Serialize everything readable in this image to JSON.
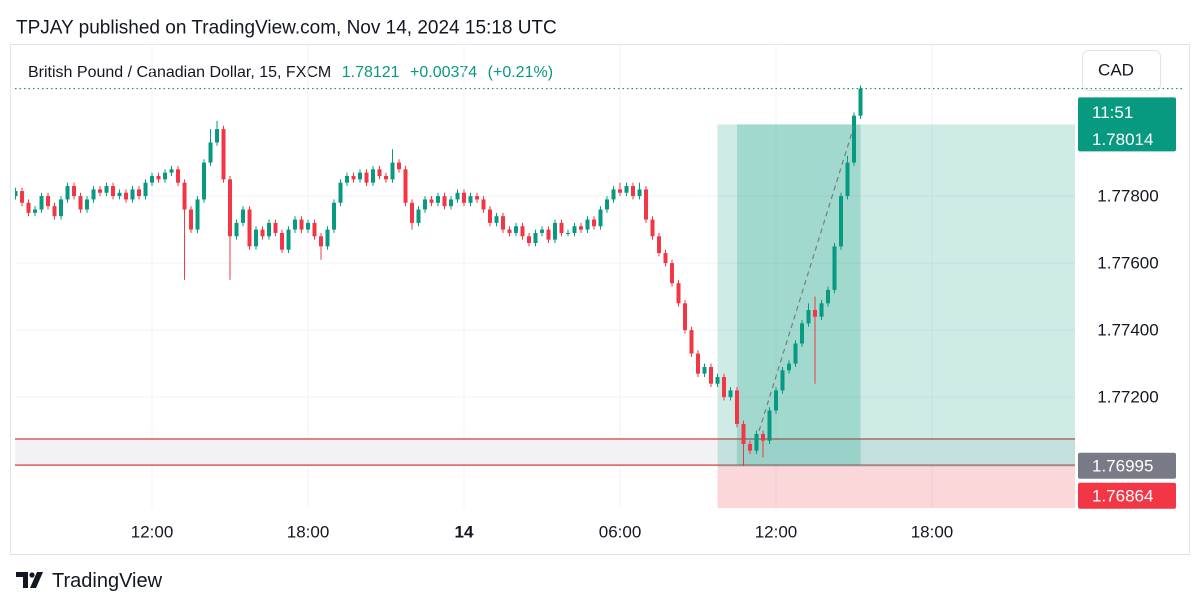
{
  "header": "TPJAY published on TradingView.com, Nov 14, 2024 15:18 UTC",
  "footer": "TradingView",
  "currency_button": "CAD",
  "chart_data": {
    "type": "candlestick",
    "title": "British Pound / Canadian Dollar, 15, FXCM",
    "last_price": 1.78121,
    "change": "+0.00374",
    "change_pct": "(+0.21%)",
    "countdown": "11:51",
    "up_color": "#089981",
    "down_color": "#f23645",
    "grid": true,
    "xlim": [
      6.73,
      47.5
    ],
    "xticks": [
      {
        "value": 12,
        "label": "12:00"
      },
      {
        "value": 18,
        "label": "18:00"
      },
      {
        "value": 24,
        "label": "14"
      },
      {
        "value": 30,
        "label": "06:00"
      },
      {
        "value": 36,
        "label": "12:00"
      },
      {
        "value": 42,
        "label": "18:00"
      }
    ],
    "ylim": [
      1.76869,
      1.78251
    ],
    "yticks": [
      {
        "value": 1.772,
        "label": "1.77200"
      },
      {
        "value": 1.774,
        "label": "1.77400"
      },
      {
        "value": 1.776,
        "label": "1.77600"
      },
      {
        "value": 1.778,
        "label": "1.77800"
      }
    ],
    "zone": [
      1.76997,
      1.77075
    ],
    "position": {
      "entry": 1.76995,
      "target": 1.78014,
      "stop": 1.76864,
      "start": 33.75,
      "end": 47.5,
      "filled_start": 34.5,
      "filled_end": 39.25
    },
    "x": [
      6.75,
      7,
      7.25,
      7.5,
      7.75,
      8,
      8.25,
      8.5,
      8.75,
      9,
      9.25,
      9.5,
      9.75,
      10,
      10.25,
      10.5,
      10.75,
      11,
      11.25,
      11.5,
      11.75,
      12,
      12.25,
      12.5,
      12.75,
      13,
      13.25,
      13.5,
      13.75,
      14,
      14.25,
      14.5,
      14.75,
      15,
      15.25,
      15.5,
      15.75,
      16,
      16.25,
      16.5,
      16.75,
      17,
      17.25,
      17.5,
      17.75,
      18,
      18.25,
      18.5,
      18.75,
      19,
      19.25,
      19.5,
      19.75,
      20,
      20.25,
      20.5,
      20.75,
      21,
      21.25,
      21.5,
      21.75,
      22,
      22.25,
      22.5,
      22.75,
      23,
      23.25,
      23.5,
      23.75,
      24,
      24.25,
      24.5,
      24.75,
      25,
      25.25,
      25.5,
      25.75,
      26,
      26.25,
      26.5,
      26.75,
      27,
      27.25,
      27.5,
      27.75,
      28,
      28.25,
      28.5,
      28.75,
      29,
      29.25,
      29.5,
      29.75,
      30,
      30.25,
      30.5,
      30.75,
      31,
      31.25,
      31.5,
      31.75,
      32,
      32.25,
      32.5,
      32.75,
      33,
      33.25,
      33.5,
      33.75,
      34,
      34.25,
      34.5,
      34.75,
      35,
      35.25,
      35.5,
      35.75,
      36,
      36.25,
      36.5,
      36.75,
      37,
      37.25,
      37.5,
      37.75,
      38,
      38.25,
      38.5,
      38.75,
      39,
      39.25
    ],
    "open": [
      1.778,
      1.77815,
      1.7778,
      1.7775,
      1.7776,
      1.778,
      1.7777,
      1.7774,
      1.7779,
      1.7783,
      1.778,
      1.7776,
      1.7779,
      1.7782,
      1.7781,
      1.7783,
      1.778,
      1.7781,
      1.7779,
      1.7782,
      1.778,
      1.7784,
      1.7786,
      1.7785,
      1.7787,
      1.7788,
      1.7784,
      1.7776,
      1.777,
      1.7779,
      1.779,
      1.7796,
      1.78,
      1.7785,
      1.7768,
      1.7772,
      1.7776,
      1.7765,
      1.777,
      1.7768,
      1.7772,
      1.7769,
      1.7764,
      1.777,
      1.7773,
      1.777,
      1.7772,
      1.7768,
      1.7765,
      1.777,
      1.7778,
      1.7784,
      1.7786,
      1.7785,
      1.7787,
      1.7784,
      1.7788,
      1.7786,
      1.7785,
      1.779,
      1.7788,
      1.7778,
      1.7772,
      1.7776,
      1.7779,
      1.7778,
      1.778,
      1.7777,
      1.7779,
      1.7781,
      1.7778,
      1.778,
      1.7779,
      1.7776,
      1.7772,
      1.7774,
      1.777,
      1.7769,
      1.7771,
      1.7768,
      1.7766,
      1.7769,
      1.777,
      1.7767,
      1.7772,
      1.7769,
      1.7769,
      1.7771,
      1.777,
      1.7773,
      1.7771,
      1.7776,
      1.7779,
      1.7782,
      1.7781,
      1.7783,
      1.778,
      1.7782,
      1.7773,
      1.7768,
      1.7763,
      1.776,
      1.7754,
      1.7748,
      1.774,
      1.7733,
      1.7727,
      1.7729,
      1.7724,
      1.7726,
      1.772,
      1.7722,
      1.7712,
      1.7706,
      1.7704,
      1.7709,
      1.7707,
      1.7716,
      1.7722,
      1.7728,
      1.773,
      1.7736,
      1.7742,
      1.7746,
      1.7744,
      1.7748,
      1.7752,
      1.7765,
      1.778,
      1.779,
      1.7804
    ],
    "high": [
      1.77825,
      1.77825,
      1.7779,
      1.7777,
      1.7781,
      1.7781,
      1.7778,
      1.778,
      1.7784,
      1.7784,
      1.7781,
      1.778,
      1.7783,
      1.7783,
      1.7784,
      1.7784,
      1.7782,
      1.7782,
      1.7783,
      1.7783,
      1.7785,
      1.7787,
      1.7787,
      1.7788,
      1.7789,
      1.7789,
      1.7785,
      1.7777,
      1.778,
      1.7791,
      1.78,
      1.78025,
      1.7801,
      1.7786,
      1.7773,
      1.7777,
      1.7777,
      1.7771,
      1.7771,
      1.7773,
      1.7773,
      1.777,
      1.7771,
      1.7774,
      1.7774,
      1.7773,
      1.7773,
      1.7769,
      1.7771,
      1.7779,
      1.7785,
      1.7787,
      1.7787,
      1.7788,
      1.7788,
      1.7789,
      1.7789,
      1.7787,
      1.7794,
      1.7791,
      1.7789,
      1.7779,
      1.7777,
      1.778,
      1.778,
      1.7781,
      1.7781,
      1.778,
      1.7782,
      1.7782,
      1.7781,
      1.7781,
      1.778,
      1.7777,
      1.7775,
      1.7775,
      1.7771,
      1.7772,
      1.7772,
      1.7769,
      1.777,
      1.7771,
      1.7771,
      1.7773,
      1.7773,
      1.777,
      1.7772,
      1.7772,
      1.7774,
      1.7774,
      1.7777,
      1.778,
      1.7783,
      1.7784,
      1.7784,
      1.7784,
      1.7784,
      1.7783,
      1.7774,
      1.7769,
      1.7764,
      1.7761,
      1.7755,
      1.7749,
      1.7741,
      1.7734,
      1.773,
      1.773,
      1.7727,
      1.7727,
      1.7723,
      1.7723,
      1.7713,
      1.7707,
      1.771,
      1.771,
      1.7717,
      1.7723,
      1.7729,
      1.7731,
      1.7737,
      1.7743,
      1.7748,
      1.775,
      1.7749,
      1.7753,
      1.7766,
      1.7781,
      1.7792,
      1.7805,
      1.7813
    ],
    "low": [
      1.7779,
      1.7777,
      1.7774,
      1.7774,
      1.7775,
      1.7776,
      1.7773,
      1.7773,
      1.7778,
      1.7779,
      1.7775,
      1.7775,
      1.7778,
      1.778,
      1.778,
      1.7779,
      1.7779,
      1.7778,
      1.7778,
      1.7779,
      1.7779,
      1.7783,
      1.7784,
      1.7784,
      1.7786,
      1.7783,
      1.7755,
      1.7769,
      1.7769,
      1.7778,
      1.7789,
      1.7795,
      1.7784,
      1.7755,
      1.7767,
      1.7771,
      1.7764,
      1.7764,
      1.7767,
      1.7767,
      1.7768,
      1.7763,
      1.7763,
      1.7769,
      1.7769,
      1.7769,
      1.7767,
      1.7761,
      1.7764,
      1.7769,
      1.7777,
      1.7783,
      1.7784,
      1.7784,
      1.7783,
      1.7783,
      1.7785,
      1.7784,
      1.7784,
      1.7787,
      1.7777,
      1.777,
      1.7771,
      1.7775,
      1.7777,
      1.7777,
      1.7776,
      1.7776,
      1.7778,
      1.7777,
      1.7777,
      1.7778,
      1.7775,
      1.7771,
      1.7771,
      1.7769,
      1.7768,
      1.7768,
      1.7767,
      1.7765,
      1.7765,
      1.7768,
      1.7766,
      1.7766,
      1.7768,
      1.7768,
      1.7768,
      1.7769,
      1.7769,
      1.777,
      1.777,
      1.7775,
      1.7778,
      1.778,
      1.778,
      1.7779,
      1.7779,
      1.7772,
      1.7767,
      1.7762,
      1.7759,
      1.7753,
      1.7747,
      1.7739,
      1.7732,
      1.7726,
      1.7726,
      1.7723,
      1.7723,
      1.7719,
      1.7719,
      1.7711,
      1.76994,
      1.7703,
      1.7703,
      1.7702,
      1.7706,
      1.7715,
      1.7721,
      1.7727,
      1.7729,
      1.7735,
      1.7741,
      1.7724,
      1.7743,
      1.7747,
      1.7751,
      1.7764,
      1.7779,
      1.7789,
      1.7803
    ],
    "close": [
      1.77815,
      1.7778,
      1.7775,
      1.7776,
      1.778,
      1.7777,
      1.7774,
      1.7779,
      1.7783,
      1.778,
      1.7776,
      1.7779,
      1.7782,
      1.7781,
      1.7783,
      1.778,
      1.7781,
      1.7779,
      1.7782,
      1.778,
      1.7784,
      1.7786,
      1.7785,
      1.7787,
      1.7788,
      1.7784,
      1.7776,
      1.777,
      1.7779,
      1.779,
      1.7796,
      1.78,
      1.7785,
      1.7768,
      1.7772,
      1.7776,
      1.7765,
      1.777,
      1.7768,
      1.7772,
      1.7769,
      1.7764,
      1.777,
      1.7773,
      1.777,
      1.7772,
      1.7768,
      1.7765,
      1.777,
      1.7778,
      1.7784,
      1.7786,
      1.7785,
      1.7787,
      1.7784,
      1.7788,
      1.7786,
      1.7785,
      1.779,
      1.7788,
      1.7778,
      1.7772,
      1.7776,
      1.7779,
      1.7778,
      1.778,
      1.7777,
      1.7779,
      1.7781,
      1.7778,
      1.778,
      1.7779,
      1.7776,
      1.7772,
      1.7774,
      1.777,
      1.7769,
      1.7771,
      1.7768,
      1.7766,
      1.7769,
      1.777,
      1.7767,
      1.7772,
      1.7769,
      1.7769,
      1.7771,
      1.777,
      1.7773,
      1.7771,
      1.7776,
      1.7779,
      1.7782,
      1.7781,
      1.7783,
      1.778,
      1.7782,
      1.7773,
      1.7768,
      1.7763,
      1.776,
      1.7754,
      1.7748,
      1.774,
      1.7733,
      1.7727,
      1.7729,
      1.7724,
      1.7726,
      1.772,
      1.7722,
      1.7712,
      1.7706,
      1.7704,
      1.7709,
      1.7707,
      1.7716,
      1.7722,
      1.7728,
      1.773,
      1.7736,
      1.7742,
      1.7746,
      1.7744,
      1.7748,
      1.7752,
      1.7765,
      1.778,
      1.779,
      1.7804,
      1.78121
    ]
  }
}
